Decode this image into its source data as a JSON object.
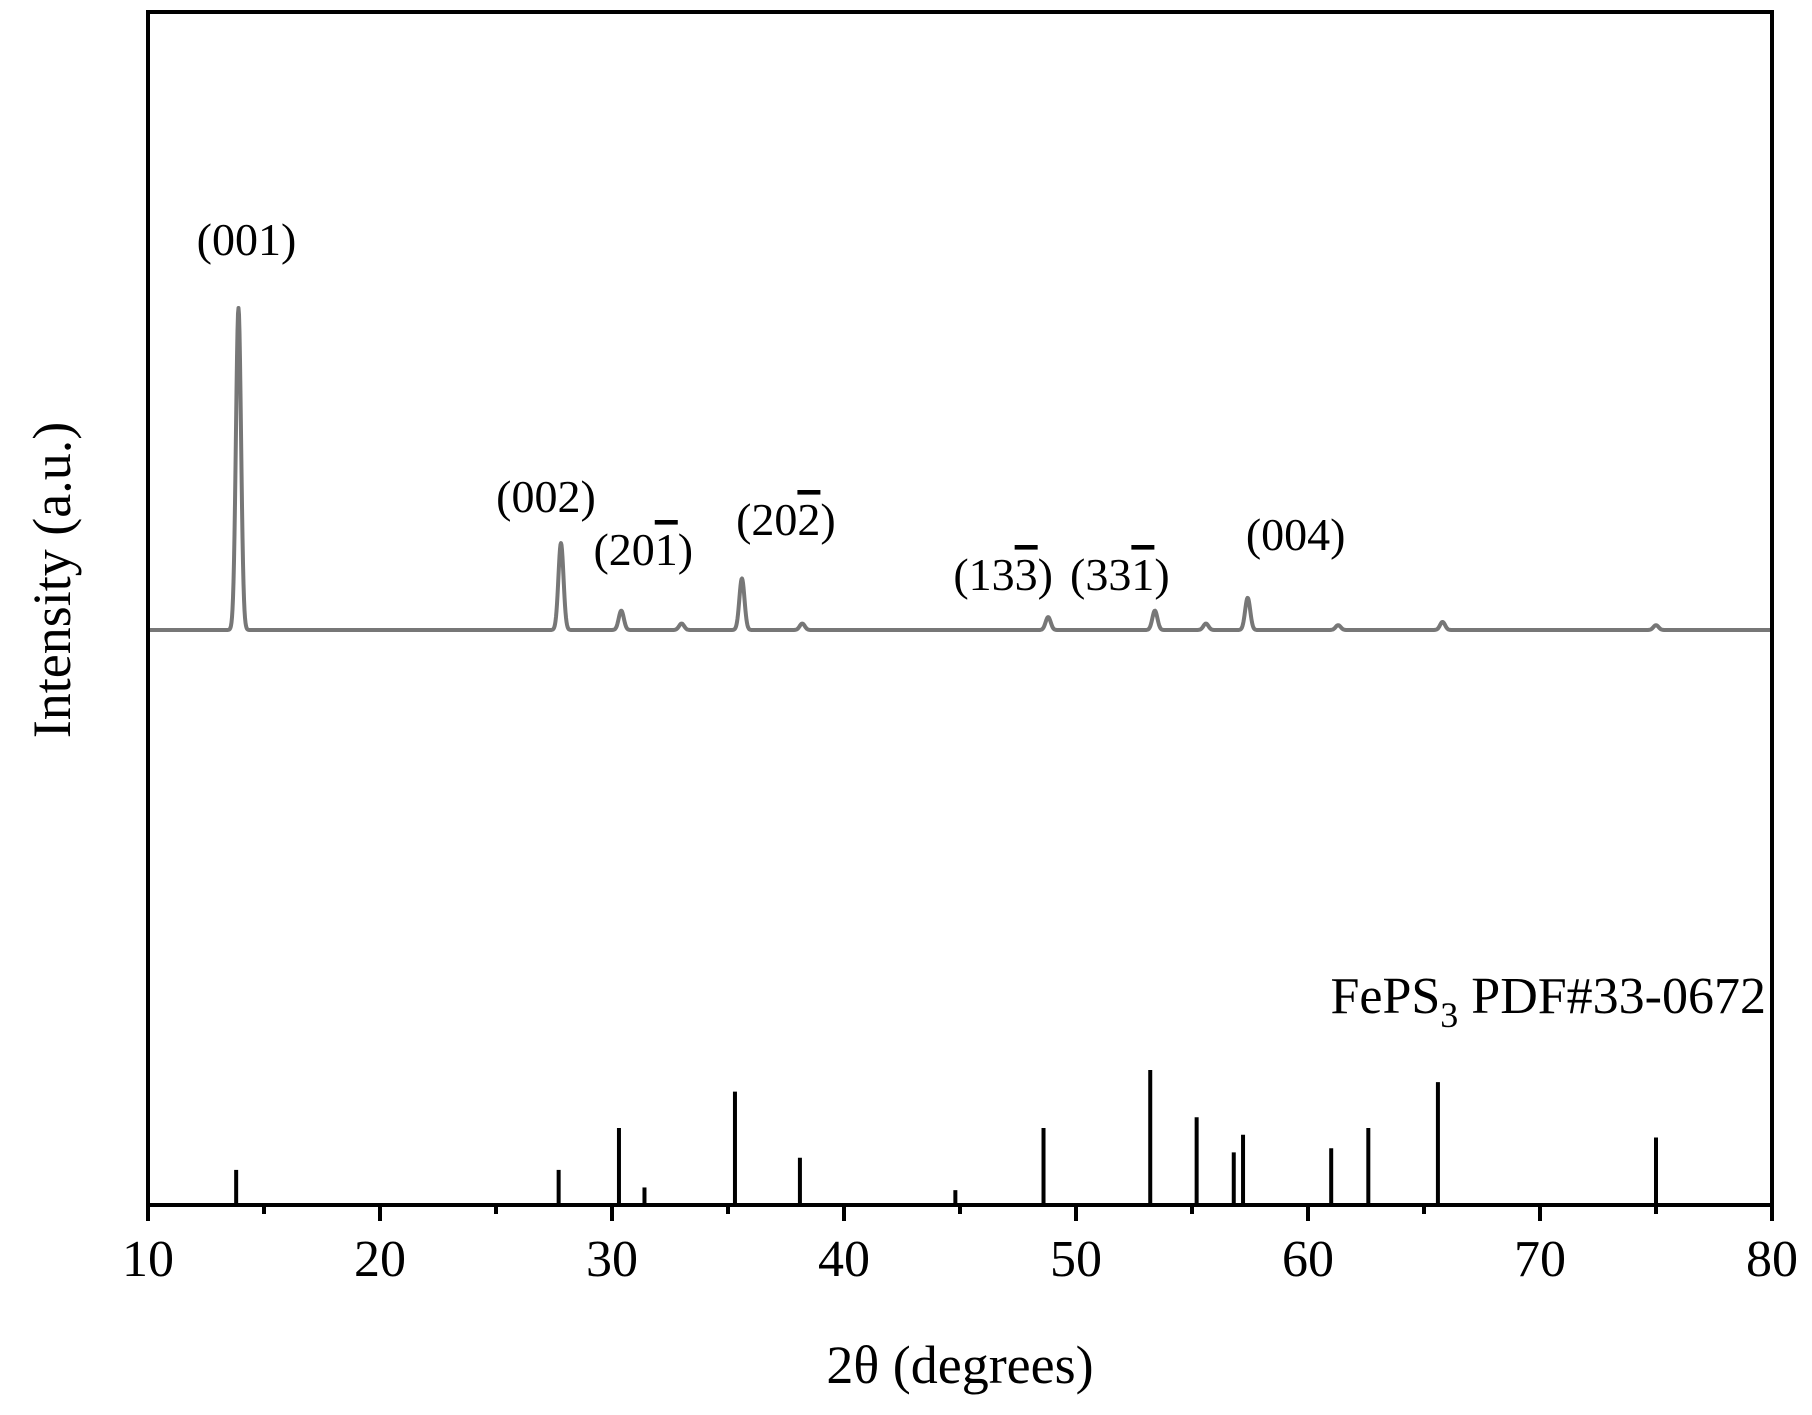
{
  "chart_data": {
    "type": "line",
    "xlabel": "2θ (degrees)",
    "ylabel": "Intensity (a.u.)",
    "xlim": [
      10,
      80
    ],
    "xticks": [
      10,
      20,
      30,
      40,
      50,
      60,
      70,
      80
    ],
    "xtick_labels": [
      "10",
      "20",
      "30",
      "40",
      "50",
      "60",
      "70",
      "80"
    ],
    "grid": false,
    "y_ticks_shown": false,
    "pattern_color": "#777777",
    "reference_color": "#000000",
    "pattern": {
      "baseline": 0,
      "peaks": [
        {
          "x": 13.9,
          "y": 100,
          "label": "(001)",
          "label_parts": [
            {
              "t": "(00"
            },
            {
              "t": "1"
            },
            {
              "t": ")"
            }
          ]
        },
        {
          "x": 27.8,
          "y": 27,
          "label": "(002)",
          "label_parts": [
            {
              "t": "(00"
            },
            {
              "t": "2"
            },
            {
              "t": ")"
            }
          ]
        },
        {
          "x": 30.4,
          "y": 6,
          "label": "(201)",
          "label_parts": [
            {
              "t": "(20"
            },
            {
              "t": "1",
              "bar": true
            },
            {
              "t": ")"
            }
          ]
        },
        {
          "x": 33.0,
          "y": 2
        },
        {
          "x": 35.6,
          "y": 16,
          "label": "(202)",
          "label_parts": [
            {
              "t": "(20"
            },
            {
              "t": "2",
              "bar": true
            },
            {
              "t": ")"
            }
          ]
        },
        {
          "x": 38.2,
          "y": 2
        },
        {
          "x": 48.8,
          "y": 4,
          "label": "(133)",
          "label_parts": [
            {
              "t": "(13"
            },
            {
              "t": "3",
              "bar": true
            },
            {
              "t": ")"
            }
          ]
        },
        {
          "x": 53.4,
          "y": 6,
          "label": "(331)",
          "label_parts": [
            {
              "t": "(33"
            },
            {
              "t": "1",
              "bar": true
            },
            {
              "t": ")"
            }
          ]
        },
        {
          "x": 55.6,
          "y": 2
        },
        {
          "x": 57.4,
          "y": 10,
          "label": "(004)",
          "label_parts": [
            {
              "t": "(00"
            },
            {
              "t": "4"
            },
            {
              "t": ")"
            }
          ]
        },
        {
          "x": 61.3,
          "y": 1.5
        },
        {
          "x": 65.8,
          "y": 2.5
        },
        {
          "x": 75.0,
          "y": 1.5
        }
      ]
    },
    "reference": {
      "label_main": "FePS",
      "label_sub": "3",
      "label_rest": " PDF#33-0672",
      "label_full": "FePS3 PDF#33-0672",
      "lines": [
        {
          "x": 13.8,
          "i": 26
        },
        {
          "x": 27.7,
          "i": 26
        },
        {
          "x": 30.3,
          "i": 57
        },
        {
          "x": 31.4,
          "i": 13
        },
        {
          "x": 35.3,
          "i": 84
        },
        {
          "x": 38.1,
          "i": 35
        },
        {
          "x": 44.8,
          "i": 11
        },
        {
          "x": 48.6,
          "i": 57
        },
        {
          "x": 53.2,
          "i": 100
        },
        {
          "x": 55.2,
          "i": 65
        },
        {
          "x": 56.8,
          "i": 39
        },
        {
          "x": 57.2,
          "i": 52
        },
        {
          "x": 61.0,
          "i": 42
        },
        {
          "x": 62.6,
          "i": 57
        },
        {
          "x": 65.6,
          "i": 91
        },
        {
          "x": 75.0,
          "i": 50
        }
      ]
    }
  }
}
